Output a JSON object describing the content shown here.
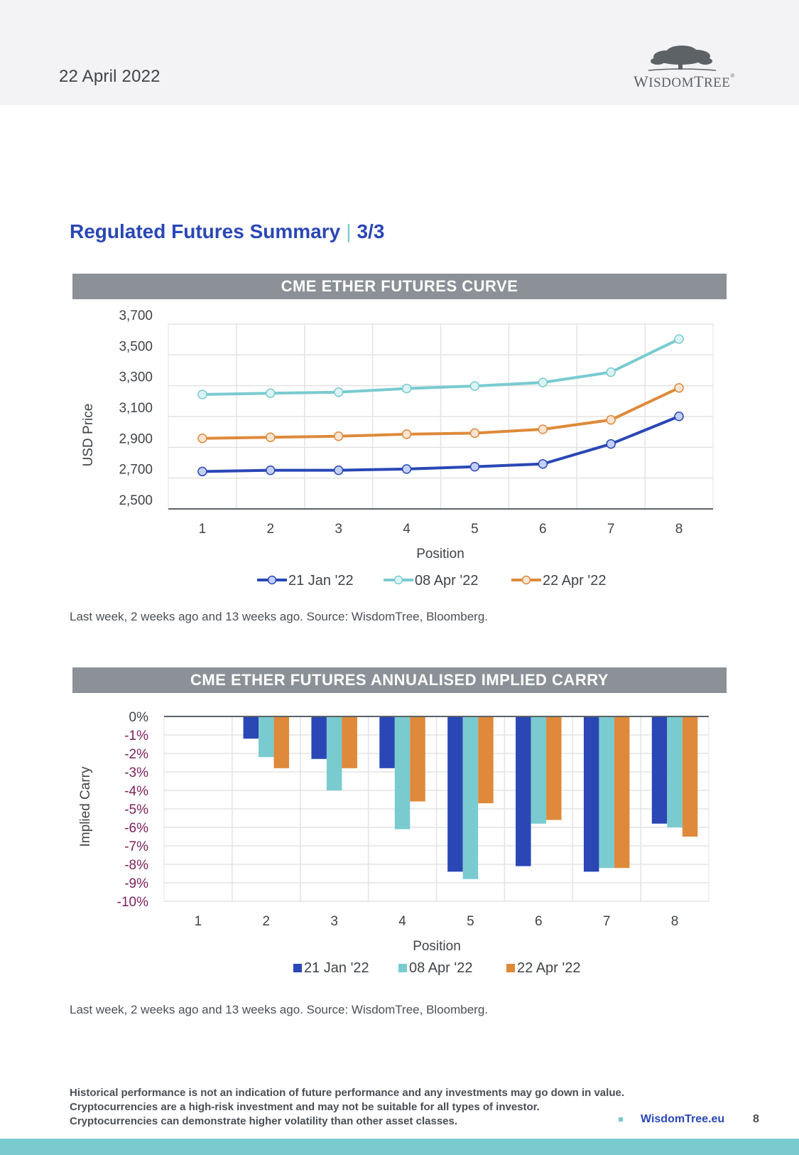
{
  "header": {
    "date": "22 April 2022",
    "logo_text_first": "W",
    "logo_text_rest": "ISDOM",
    "logo_text_second": "T",
    "logo_text_second_rest": "REE",
    "logo_registered": "®"
  },
  "section": {
    "title": "Regulated Futures Summary",
    "separator": "|",
    "page_fraction": "3/3"
  },
  "colors": {
    "series_1": "#2a47b5",
    "series_2": "#79cbd0",
    "series_3": "#de8a3a",
    "title_bar": "#8b9197",
    "accent_blue": "#2a47b5",
    "accent_teal": "#79cbd0",
    "negative_tick": "#7a1f5c"
  },
  "chart_data": [
    {
      "type": "line",
      "title": "CME ETHER FUTURES CURVE",
      "xlabel": "Position",
      "ylabel": "USD Price",
      "categories": [
        "1",
        "2",
        "3",
        "4",
        "5",
        "6",
        "7",
        "8"
      ],
      "ylim": [
        2500,
        3700
      ],
      "yticks": [
        3700,
        3500,
        3300,
        3100,
        2900,
        2700,
        2500
      ],
      "ytick_labels": [
        "3,700",
        "3,500",
        "3,300",
        "3,100",
        "2,900",
        "2,700",
        "2,500"
      ],
      "grid": true,
      "legend_position": "bottom",
      "series": [
        {
          "name": "21 Jan '22",
          "values": [
            2743,
            2751,
            2751,
            2759,
            2774,
            2792,
            2922,
            3101
          ]
        },
        {
          "name": "08 Apr '22",
          "values": [
            3243,
            3251,
            3258,
            3282,
            3298,
            3321,
            3388,
            3603
          ]
        },
        {
          "name": "22 Apr '22",
          "values": [
            2958,
            2965,
            2972,
            2985,
            2992,
            3017,
            3078,
            3286
          ]
        }
      ],
      "caption": "Last week, 2 weeks ago and 13 weeks ago. Source: WisdomTree, Bloomberg."
    },
    {
      "type": "bar",
      "title": "CME ETHER FUTURES ANNUALISED IMPLIED CARRY",
      "xlabel": "Position",
      "ylabel": "Implied Carry",
      "categories": [
        "1",
        "2",
        "3",
        "4",
        "5",
        "6",
        "7",
        "8"
      ],
      "ylim": [
        -10,
        0
      ],
      "yticks": [
        0,
        -1,
        -2,
        -3,
        -4,
        -5,
        -6,
        -7,
        -8,
        -9,
        -10
      ],
      "ytick_labels": [
        "0%",
        "-1%",
        "-2%",
        "-3%",
        "-4%",
        "-5%",
        "-6%",
        "-7%",
        "-8%",
        "-9%",
        "-10%"
      ],
      "grid": true,
      "legend_position": "bottom",
      "series": [
        {
          "name": "21 Jan '22",
          "values": [
            null,
            -1.2,
            -2.3,
            -2.8,
            -8.4,
            -8.1,
            -8.4,
            -5.8
          ]
        },
        {
          "name": "08 Apr '22",
          "values": [
            null,
            -2.2,
            -4.0,
            -6.1,
            -8.8,
            -5.8,
            -8.2,
            -6.0
          ]
        },
        {
          "name": "22 Apr '22",
          "values": [
            null,
            -2.8,
            -2.8,
            -4.6,
            -4.7,
            -5.6,
            -8.2,
            -6.5
          ]
        }
      ],
      "caption": "Last week, 2 weeks ago and 13 weeks ago. Source: WisdomTree, Bloomberg."
    }
  ],
  "footer": {
    "disclaimer_lines": [
      "Historical performance is not an indication of future performance and any investments may go down in value.",
      "Cryptocurrencies are a high-risk investment and may not be suitable for all types of investor.",
      "Cryptocurrencies can demonstrate higher volatility than other asset classes."
    ],
    "link": "WisdomTree.eu",
    "page_number": "8"
  }
}
